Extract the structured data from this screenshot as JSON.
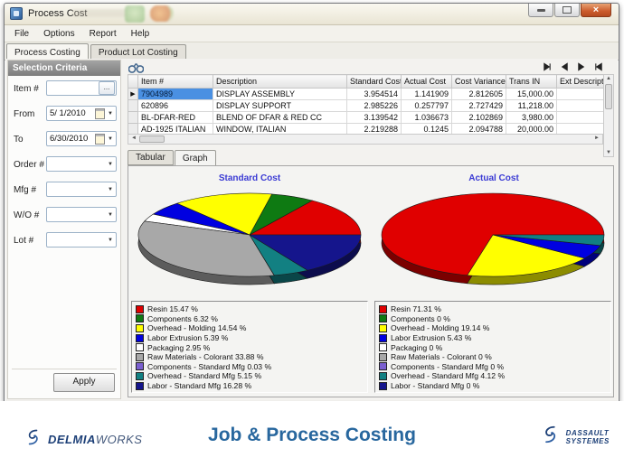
{
  "window": {
    "title": "Process Cost",
    "controls": [
      "minimize-icon",
      "maximize-icon",
      "close-icon"
    ]
  },
  "menu": {
    "items": [
      "File",
      "Options",
      "Report",
      "Help"
    ]
  },
  "main_tabs": {
    "items": [
      "Process Costing",
      "Product Lot Costing"
    ],
    "active": 0
  },
  "sidebar": {
    "header": "Selection Criteria",
    "fields": [
      {
        "label": "Item #",
        "value": "",
        "widget": "ellipsis"
      },
      {
        "label": "From",
        "value": "5/ 1/2010",
        "widget": "date"
      },
      {
        "label": "To",
        "value": "6/30/2010",
        "widget": "date"
      },
      {
        "label": "Order #",
        "value": "",
        "widget": "dropdown"
      },
      {
        "label": "Mfg #",
        "value": "",
        "widget": "dropdown"
      },
      {
        "label": "W/O #",
        "value": "",
        "widget": "dropdown"
      },
      {
        "label": "Lot #",
        "value": "",
        "widget": "dropdown"
      }
    ],
    "apply_label": "Apply"
  },
  "toolbar": {
    "find_icon": "binoculars-icon",
    "nav_icons": [
      "first",
      "previous",
      "next",
      "last"
    ]
  },
  "table": {
    "columns": [
      "Item #",
      "Description",
      "Standard Cost",
      "Actual Cost",
      "Cost Variance",
      "Trans IN",
      "Ext Description"
    ],
    "numeric_columns": [
      2,
      3,
      4,
      5
    ],
    "rows": [
      [
        "7904989",
        "DISPLAY ASSEMBLY",
        "3.954514",
        "1.141909",
        "2.812605",
        "15,000.00",
        ""
      ],
      [
        "620896",
        "DISPLAY SUPPORT",
        "2.985226",
        "0.257797",
        "2.727429",
        "11,218.00",
        ""
      ],
      [
        "BL-DFAR-RED",
        "BLEND OF DFAR & RED CC",
        "3.139542",
        "1.036673",
        "2.102869",
        "3,980.00",
        ""
      ],
      [
        "AD-1925 ITALIAN",
        "WINDOW, ITALIAN",
        "2.219288",
        "0.1245",
        "2.094788",
        "20,000.00",
        ""
      ]
    ],
    "selected_row": 0,
    "selection_color": "#4a90e2"
  },
  "view_tabs": {
    "items": [
      "Tabular",
      "Graph"
    ],
    "active": 1
  },
  "chart_data": [
    {
      "type": "pie",
      "title": "Standard Cost",
      "labels": [
        "Resin",
        "Components",
        "Overhead - Molding",
        "Labor Extrusion",
        "Packaging",
        "Raw Materials - Colorant",
        "Components - Standard Mfg",
        "Overhead - Standard Mfg",
        "Labor - Standard Mfg"
      ],
      "values": [
        15.47,
        6.32,
        14.54,
        5.39,
        2.95,
        33.88,
        0.03,
        5.15,
        16.28
      ],
      "colors": [
        "#e00000",
        "#0e7a12",
        "#ffff00",
        "#0000e0",
        "#ffffff",
        "#a8a8a8",
        "#7a5fd0",
        "#128082",
        "#15158c"
      ],
      "unit": "%",
      "legend_position": "bottom",
      "style": "3d"
    },
    {
      "type": "pie",
      "title": "Actual Cost",
      "labels": [
        "Resin",
        "Components",
        "Overhead - Molding",
        "Labor Extrusion",
        "Packaging",
        "Raw Materials - Colorant",
        "Components - Standard Mfg",
        "Overhead - Standard Mfg",
        "Labor - Standard Mfg"
      ],
      "values": [
        71.31,
        0,
        19.14,
        5.43,
        0,
        0,
        0,
        4.12,
        0
      ],
      "colors": [
        "#e00000",
        "#0e7a12",
        "#ffff00",
        "#0000e0",
        "#ffffff",
        "#a8a8a8",
        "#7a5fd0",
        "#128082",
        "#15158c"
      ],
      "unit": "%",
      "legend_position": "bottom",
      "style": "3d"
    }
  ],
  "footer": {
    "title": "Job & Process Costing",
    "brand_left_bold": "DELMIA",
    "brand_left_light": "WORKS",
    "brand_right_line1": "DASSAULT",
    "brand_right_line2": "SYSTEMES",
    "accent_color": "#28679e"
  }
}
